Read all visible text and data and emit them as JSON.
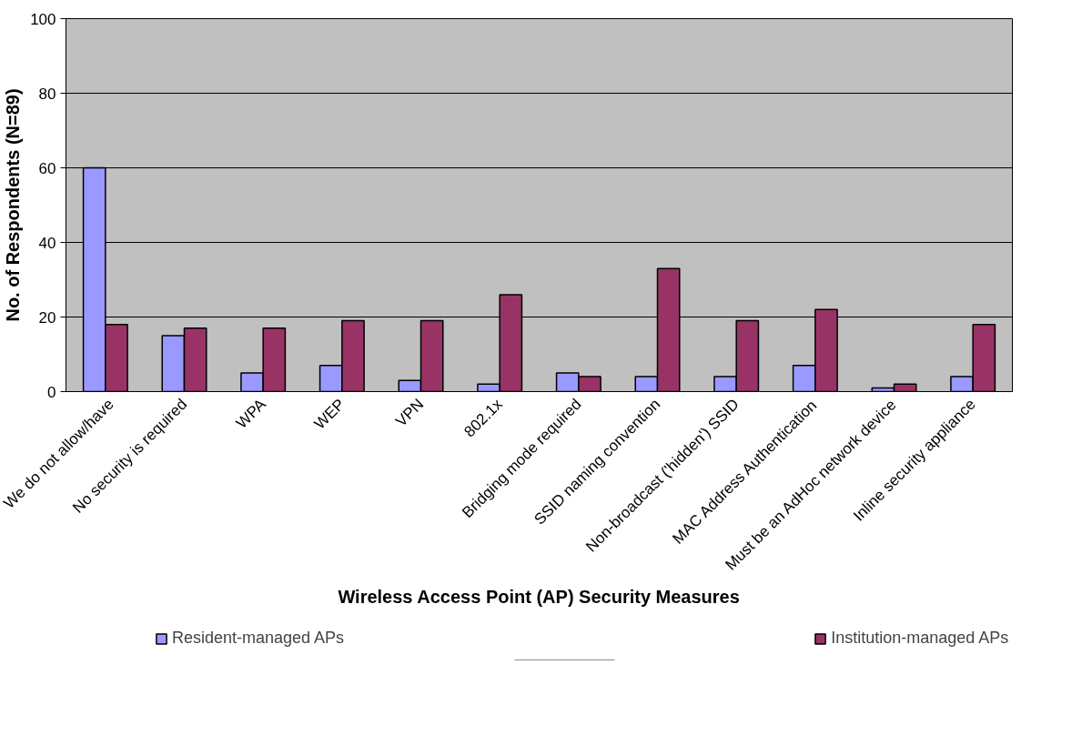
{
  "chart_data": {
    "type": "bar",
    "xlabel": "Wireless Access Point (AP) Security Measures",
    "ylabel": "No. of Respondents (N=89)",
    "categories": [
      "We do not allow/have",
      "No security is required",
      "WPA",
      "WEP",
      "VPN",
      "802.1x",
      "Bridging mode required",
      "SSID naming convention",
      "Non-broadcast ('hidden') SSID",
      "MAC Address Authentication",
      "Must be an AdHoc network device",
      "Inline security appliance"
    ],
    "series": [
      {
        "name": "Resident-managed APs",
        "color": "#9999ff",
        "values": [
          60,
          15,
          5,
          7,
          3,
          2,
          5,
          4,
          4,
          7,
          1,
          4
        ]
      },
      {
        "name": "Institution-managed APs",
        "color": "#993366",
        "values": [
          18,
          17,
          17,
          19,
          19,
          26,
          4,
          33,
          19,
          22,
          2,
          18
        ]
      }
    ],
    "ylim": [
      0,
      100
    ],
    "yticks": [
      0,
      20,
      40,
      60,
      80,
      100
    ],
    "grid": "y",
    "legend": "bottom"
  }
}
